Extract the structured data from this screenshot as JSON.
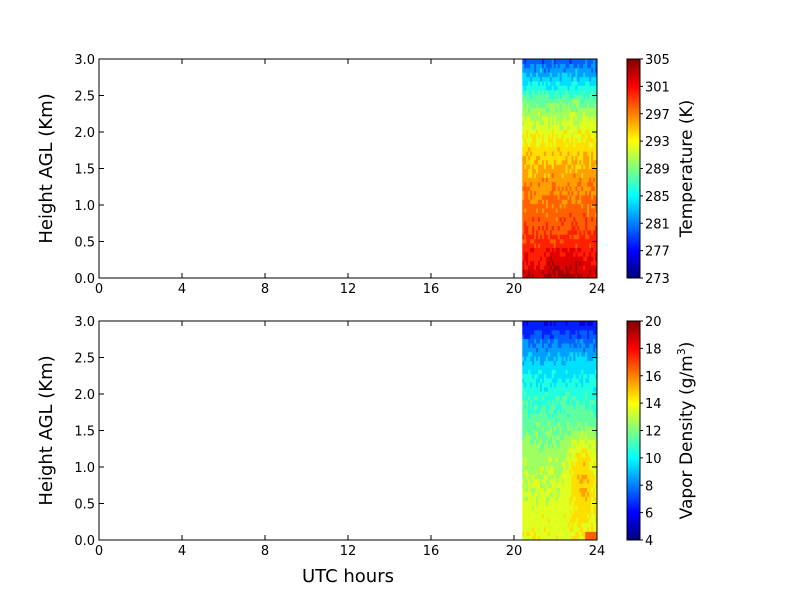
{
  "chart_data": [
    {
      "type": "heatmap",
      "ylabel": "Height AGL (Km)",
      "xlabel": "",
      "xlim": [
        0,
        24
      ],
      "ylim": [
        0,
        3
      ],
      "xticks": [
        "0",
        "4",
        "8",
        "12",
        "16",
        "20",
        "24"
      ],
      "yticks": [
        "0.0",
        "0.5",
        "1.0",
        "1.5",
        "2.0",
        "2.5",
        "3.0"
      ],
      "data_x_start": 20.4,
      "colorbar": {
        "label": "Temperature (K)",
        "min": 273,
        "max": 305,
        "ticks": [
          "273",
          "277",
          "281",
          "285",
          "289",
          "293",
          "297",
          "301",
          "305"
        ]
      },
      "profile": {
        "heights": [
          0,
          0.25,
          0.5,
          0.75,
          1.0,
          1.25,
          1.5,
          1.75,
          2.0,
          2.25,
          2.5,
          2.75,
          3.0
        ],
        "values": [
          302.5,
          301,
          299.5,
          298.3,
          297.6,
          296.6,
          295.4,
          294.2,
          292.4,
          290.2,
          287.3,
          283.5,
          279.5
        ]
      },
      "grid": false
    },
    {
      "type": "heatmap",
      "ylabel": "Height AGL (Km)",
      "xlabel": "UTC hours",
      "xlim": [
        0,
        24
      ],
      "ylim": [
        0,
        3
      ],
      "xticks": [
        "0",
        "4",
        "8",
        "12",
        "16",
        "20",
        "24"
      ],
      "yticks": [
        "0.0",
        "0.5",
        "1.0",
        "1.5",
        "2.0",
        "2.5",
        "3.0"
      ],
      "data_x_start": 20.4,
      "colorbar": {
        "label": "Vapor Density (g/m",
        "label_sup": "3",
        "label_end": ")",
        "min": 4,
        "max": 20,
        "ticks": [
          "4",
          "6",
          "8",
          "10",
          "12",
          "14",
          "16",
          "18",
          "20"
        ]
      },
      "profile": {
        "heights": [
          0,
          0.25,
          0.5,
          0.75,
          1.0,
          1.25,
          1.5,
          1.75,
          2.0,
          2.25,
          2.5,
          2.75,
          3.0
        ],
        "values": [
          13.8,
          13.6,
          13.4,
          13.1,
          12.8,
          12.4,
          11.8,
          11.2,
          10.6,
          9.9,
          9.0,
          7.6,
          6.0
        ]
      },
      "grid": false
    }
  ]
}
